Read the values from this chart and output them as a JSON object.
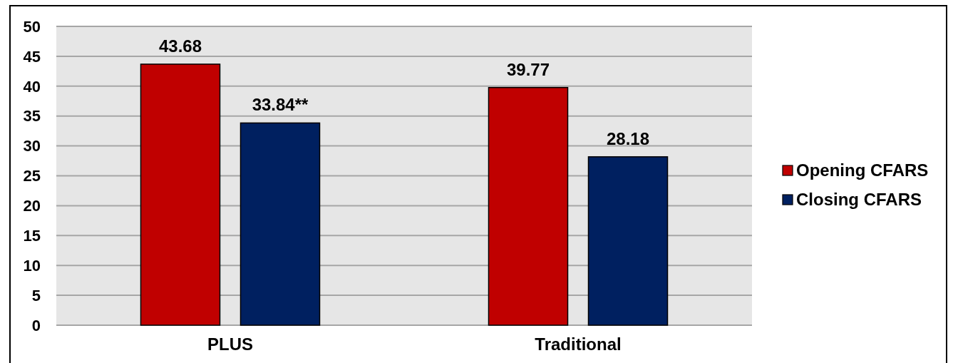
{
  "chart_data": {
    "type": "bar",
    "categories": [
      "PLUS",
      "Traditional"
    ],
    "series": [
      {
        "name": "Opening CFARS",
        "color": "#c00000",
        "values": [
          43.68,
          39.77
        ],
        "value_labels": [
          "43.68",
          "39.77"
        ]
      },
      {
        "name": "Closing CFARS",
        "color": "#002060",
        "values": [
          33.84,
          28.18
        ],
        "value_labels": [
          "33.84**",
          "28.18"
        ]
      }
    ],
    "ylim": [
      0,
      50
    ],
    "yticks": [
      0,
      5,
      10,
      15,
      20,
      25,
      30,
      35,
      40,
      45,
      50
    ],
    "grid": "y",
    "legend": "right"
  }
}
